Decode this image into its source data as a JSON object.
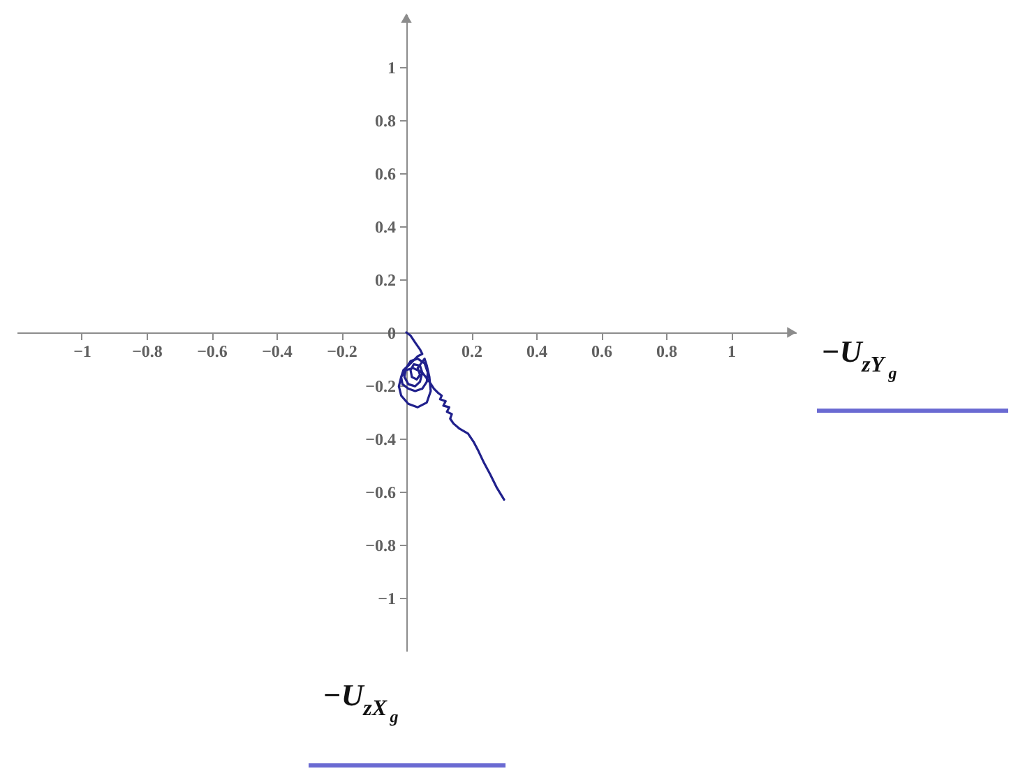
{
  "chart_data": {
    "type": "line",
    "xlabel": "−U$_{zX}$$_{g}$",
    "ylabel": "−U$_{zY}$$_{g}$",
    "x": [
      0,
      0.013,
      0.027,
      0.042,
      0.049,
      0.035,
      0.02,
      0.006,
      -0.009,
      -0.016,
      -0.012,
      0.006,
      0.027,
      0.049,
      0.063,
      0.066,
      0.056,
      0.035,
      0.013,
      -0.001,
      -0.006,
      0.006,
      0.027,
      0.042,
      0.049,
      0.042,
      0.023,
      0.013,
      0.017,
      0.032,
      0.042,
      0.035,
      0.056,
      0.063,
      0.071,
      0.075,
      0.063,
      0.035,
      0.006,
      -0.016,
      -0.023,
      -0.016,
      -0.001,
      0.02,
      0.049,
      0.071,
      0.085,
      0.099,
      0.109,
      0.104,
      0.121,
      0.114,
      0.132,
      0.125,
      0.14,
      0.135,
      0.145,
      0.164,
      0.19,
      0.207,
      0.222,
      0.239,
      0.258,
      0.279,
      0.301
    ],
    "values": [
      0,
      -0.012,
      -0.038,
      -0.064,
      -0.081,
      -0.09,
      -0.108,
      -0.125,
      -0.142,
      -0.168,
      -0.195,
      -0.212,
      -0.221,
      -0.212,
      -0.186,
      -0.151,
      -0.116,
      -0.099,
      -0.108,
      -0.134,
      -0.168,
      -0.195,
      -0.203,
      -0.186,
      -0.151,
      -0.125,
      -0.12,
      -0.142,
      -0.168,
      -0.177,
      -0.16,
      -0.134,
      -0.099,
      -0.125,
      -0.168,
      -0.221,
      -0.264,
      -0.282,
      -0.269,
      -0.238,
      -0.203,
      -0.168,
      -0.142,
      -0.134,
      -0.151,
      -0.186,
      -0.212,
      -0.229,
      -0.238,
      -0.252,
      -0.259,
      -0.276,
      -0.282,
      -0.299,
      -0.308,
      -0.325,
      -0.343,
      -0.363,
      -0.381,
      -0.412,
      -0.447,
      -0.491,
      -0.534,
      -0.586,
      -0.63
    ],
    "color": "#20208c",
    "xlim": [
      -1.2,
      1.2
    ],
    "ylim": [
      -1.2,
      1.2
    ],
    "xticks": [
      -1,
      -0.8,
      -0.6,
      -0.4,
      -0.2,
      {
        "value": 0,
        "label": null
      },
      0.2,
      0.4,
      0.6,
      0.8,
      1
    ],
    "yticks": [
      -1,
      -0.8,
      -0.6,
      -0.4,
      -0.2,
      0,
      0.2,
      0.4,
      0.6,
      0.8,
      1
    ]
  }
}
